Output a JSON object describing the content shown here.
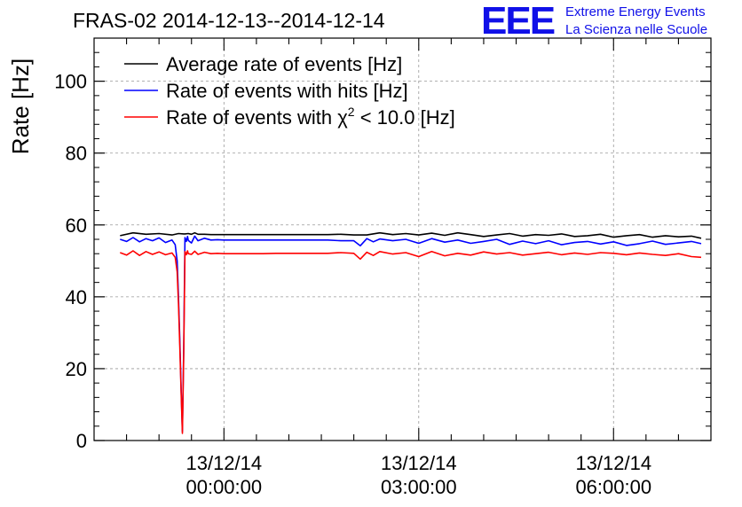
{
  "header": {
    "title": "FRAS-02 2014-12-13--2014-12-14",
    "logo_text": "EEE",
    "logo_line1": "Extreme Energy Events",
    "logo_line2": "La Scienza nelle Scuole"
  },
  "colors": {
    "avg": "#000000",
    "hits": "#0000ff",
    "chi2": "#ff0000",
    "logo": "#1010e8"
  },
  "chart_data": {
    "type": "line",
    "title": "FRAS-02 2014-12-13--2014-12-14",
    "ylabel": "Rate [Hz]",
    "xlabel": "",
    "xlim_hours": [
      -2.0,
      7.5
    ],
    "ylim": [
      0,
      112
    ],
    "grid": true,
    "legend_position": "top-left",
    "y_ticks": [
      0,
      20,
      40,
      60,
      80,
      100
    ],
    "x_ticks": [
      {
        "h": 0,
        "date": "13/12/14",
        "time": "00:00:00"
      },
      {
        "h": 3,
        "date": "13/12/14",
        "time": "03:00:00"
      },
      {
        "h": 6,
        "date": "13/12/14",
        "time": "06:00:00"
      }
    ],
    "legend": [
      {
        "key": "avg",
        "label": "Average rate of events [Hz]"
      },
      {
        "key": "hits",
        "label": "Rate of events with hits [Hz]"
      },
      {
        "key": "chi2",
        "label_prefix": "Rate of events with ",
        "chi": "χ",
        "sup": "2",
        "label_suffix": " < 10.0 [Hz]"
      }
    ],
    "series": [
      {
        "name": "Average rate of events [Hz]",
        "key": "avg",
        "x_hours": [
          -1.6,
          -1.4,
          -1.2,
          -1.0,
          -0.8,
          -0.7,
          -0.62,
          -0.6,
          -0.55,
          -0.5,
          -0.45,
          -0.4,
          -0.3,
          -0.2,
          -0.1,
          0.0,
          0.2,
          0.4,
          0.6,
          0.8,
          1.0,
          1.2,
          1.4,
          1.6,
          1.8,
          2.0,
          2.2,
          2.4,
          2.6,
          2.8,
          3.0,
          3.2,
          3.4,
          3.6,
          3.8,
          4.0,
          4.2,
          4.4,
          4.6,
          4.8,
          5.0,
          5.2,
          5.4,
          5.6,
          5.8,
          6.0,
          6.2,
          6.4,
          6.6,
          6.8,
          7.0,
          7.2,
          7.35
        ],
        "values": [
          57.0,
          57.8,
          57.4,
          57.6,
          57.2,
          57.6,
          57.5,
          57.5,
          57.6,
          57.4,
          57.8,
          57.4,
          57.4,
          57.3,
          57.3,
          57.3,
          57.3,
          57.3,
          57.3,
          57.3,
          57.3,
          57.3,
          57.3,
          57.3,
          57.4,
          57.2,
          57.2,
          57.8,
          57.3,
          57.6,
          57.2,
          57.7,
          57.1,
          57.8,
          57.3,
          56.8,
          57.2,
          57.6,
          56.9,
          57.3,
          57.1,
          57.5,
          56.8,
          57.0,
          57.4,
          56.6,
          57.0,
          57.3,
          56.6,
          57.0,
          56.7,
          56.9,
          56.3
        ]
      },
      {
        "name": "Rate of events with hits [Hz]",
        "key": "hits",
        "x_hours": [
          -1.6,
          -1.5,
          -1.4,
          -1.3,
          -1.2,
          -1.1,
          -1.0,
          -0.9,
          -0.8,
          -0.75,
          -0.72,
          -0.7,
          -0.68,
          -0.66,
          -0.64,
          -0.62,
          -0.6,
          -0.58,
          -0.56,
          -0.55,
          -0.5,
          -0.45,
          -0.4,
          -0.3,
          -0.2,
          -0.1,
          0.0,
          0.2,
          0.4,
          0.6,
          0.8,
          1.0,
          1.2,
          1.4,
          1.6,
          1.8,
          2.0,
          2.1,
          2.2,
          2.3,
          2.4,
          2.6,
          2.8,
          3.0,
          3.2,
          3.4,
          3.6,
          3.8,
          4.0,
          4.2,
          4.4,
          4.6,
          4.8,
          5.0,
          5.2,
          5.4,
          5.6,
          5.8,
          6.0,
          6.2,
          6.4,
          6.6,
          6.8,
          7.0,
          7.2,
          7.35
        ],
        "values": [
          56.0,
          55.4,
          56.5,
          55.3,
          56.2,
          55.6,
          56.4,
          55.1,
          55.8,
          54.5,
          50.0,
          40.0,
          28.0,
          15.0,
          2.5,
          26.0,
          56.5,
          55.4,
          56.8,
          55.7,
          55.0,
          56.9,
          55.6,
          56.3,
          55.8,
          55.9,
          55.8,
          55.8,
          55.8,
          55.8,
          55.8,
          55.8,
          55.8,
          55.8,
          55.8,
          55.6,
          55.6,
          54.2,
          56.2,
          55.3,
          56.1,
          55.6,
          56.0,
          54.9,
          56.2,
          55.2,
          55.8,
          54.9,
          55.4,
          56.0,
          54.6,
          55.5,
          54.8,
          55.6,
          54.5,
          55.1,
          55.4,
          54.7,
          55.3,
          54.3,
          54.8,
          55.5,
          54.6,
          55.0,
          55.4,
          54.8
        ]
      },
      {
        "name": "Rate of events with chi2 < 10.0 [Hz]",
        "key": "chi2",
        "x_hours": [
          -1.6,
          -1.5,
          -1.4,
          -1.3,
          -1.2,
          -1.1,
          -1.0,
          -0.9,
          -0.8,
          -0.75,
          -0.72,
          -0.7,
          -0.68,
          -0.66,
          -0.64,
          -0.62,
          -0.6,
          -0.58,
          -0.56,
          -0.55,
          -0.5,
          -0.45,
          -0.4,
          -0.3,
          -0.2,
          -0.1,
          0.0,
          0.2,
          0.4,
          0.6,
          0.8,
          1.0,
          1.2,
          1.4,
          1.6,
          1.8,
          2.0,
          2.1,
          2.2,
          2.3,
          2.4,
          2.6,
          2.8,
          3.0,
          3.2,
          3.4,
          3.6,
          3.8,
          4.0,
          4.2,
          4.4,
          4.6,
          4.8,
          5.0,
          5.2,
          5.4,
          5.6,
          5.8,
          6.0,
          6.2,
          6.4,
          6.6,
          6.8,
          7.0,
          7.2,
          7.35
        ],
        "values": [
          52.3,
          51.6,
          52.8,
          51.5,
          52.6,
          51.8,
          52.5,
          51.7,
          52.2,
          51.0,
          47.0,
          38.0,
          26.0,
          14.0,
          2.0,
          24.0,
          52.6,
          51.7,
          52.8,
          52.0,
          51.8,
          52.7,
          51.8,
          52.4,
          52.0,
          52.1,
          52.0,
          52.0,
          52.0,
          52.0,
          52.1,
          52.1,
          52.1,
          52.1,
          52.1,
          52.3,
          52.1,
          50.5,
          52.4,
          51.5,
          52.6,
          51.9,
          52.3,
          51.2,
          52.6,
          51.4,
          52.1,
          51.6,
          52.5,
          51.9,
          52.3,
          51.6,
          52.0,
          52.4,
          51.7,
          52.2,
          51.8,
          52.3,
          52.1,
          51.7,
          52.2,
          51.8,
          51.5,
          52.0,
          51.2,
          51.0
        ]
      }
    ]
  }
}
